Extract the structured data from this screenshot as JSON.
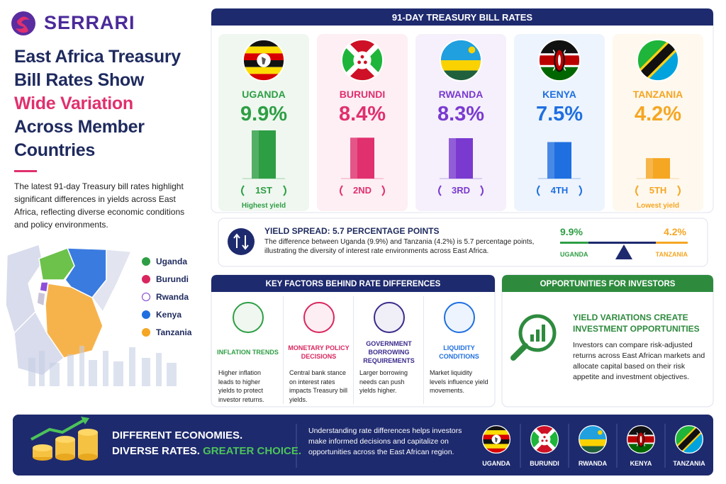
{
  "header": {
    "brand": "SERRARI",
    "title_lines": [
      "East Africa Treasury",
      "Bill Rates Show"
    ],
    "highlight": "Wide Variation",
    "title_end": [
      "Across Member",
      "Countries"
    ],
    "intro": "The latest 91-day Treasury bill rates highlight significant differences in yields across East Africa, reflecting diverse economic conditions and policy environments."
  },
  "map_legend": [
    {
      "name": "Uganda",
      "color": "#2e9e44"
    },
    {
      "name": "Burundi",
      "color": "#d9265f"
    },
    {
      "name": "Rwanda",
      "color": "#ffffff"
    },
    {
      "name": "Kenya",
      "color": "#1f6fe0"
    },
    {
      "name": "Tanzania",
      "color": "#f5a623"
    }
  ],
  "chart_data": {
    "type": "bar",
    "title": "91-DAY TREASURY BILL RATES",
    "categories": [
      "UGANDA",
      "BURUNDI",
      "RWANDA",
      "KENYA",
      "TANZANIA"
    ],
    "values": [
      9.9,
      8.4,
      8.3,
      7.5,
      4.2
    ],
    "value_labels": [
      "9.9%",
      "8.4%",
      "8.3%",
      "7.5%",
      "4.2%"
    ],
    "colors": [
      "#2e9e44",
      "#e0306e",
      "#7a3ad0",
      "#1f6fe0",
      "#f5a623"
    ],
    "ranks": [
      "1ST",
      "2ND",
      "3RD",
      "4TH",
      "5TH"
    ],
    "highest_note": "Highest yield",
    "lowest_note": "Lowest yield"
  },
  "spread": {
    "title": "YIELD SPREAD: 5.7 PERCENTAGE POINTS",
    "text": "The difference between Uganda (9.9%) and Tanzania (4.2%) is 5.7 percentage points, illustrating the diversity of interest rate environments across East Africa."
  },
  "factors": {
    "title": "KEY FACTORS BEHIND RATE DIFFERENCES",
    "items": [
      {
        "title": "INFLATION TRENDS",
        "text": "Higher inflation leads to higher yields to protect investor returns.",
        "color": "#2e9e44"
      },
      {
        "title": "MONETARY POLICY DECISIONS",
        "text": "Central bank stance on interest rates impacts Treasury bill yields.",
        "color": "#d9265f"
      },
      {
        "title": "GOVERNMENT BORROWING REQUIREMENTS",
        "text": "Larger borrowing needs can push yields higher.",
        "color": "#3b2a8c"
      },
      {
        "title": "LIQUIDITY CONDITIONS",
        "text": "Market liquidity levels influence yield movements.",
        "color": "#1f6fe0"
      }
    ]
  },
  "opportunities": {
    "title": "OPPORTUNITIES FOR INVESTORS",
    "heading": "YIELD VARIATIONS CREATE INVESTMENT OPPORTUNITIES",
    "text": "Investors can compare risk-adjusted returns across East African markets and allocate capital based on their risk appetite and investment objectives."
  },
  "footer": {
    "line1": "DIFFERENT ECONOMIES.",
    "line2": "DIVERSE RATES.",
    "highlight": "GREATER CHOICE.",
    "text": "Understanding rate differences helps investors make informed decisions and capitalize on opportunities across the East African region."
  }
}
